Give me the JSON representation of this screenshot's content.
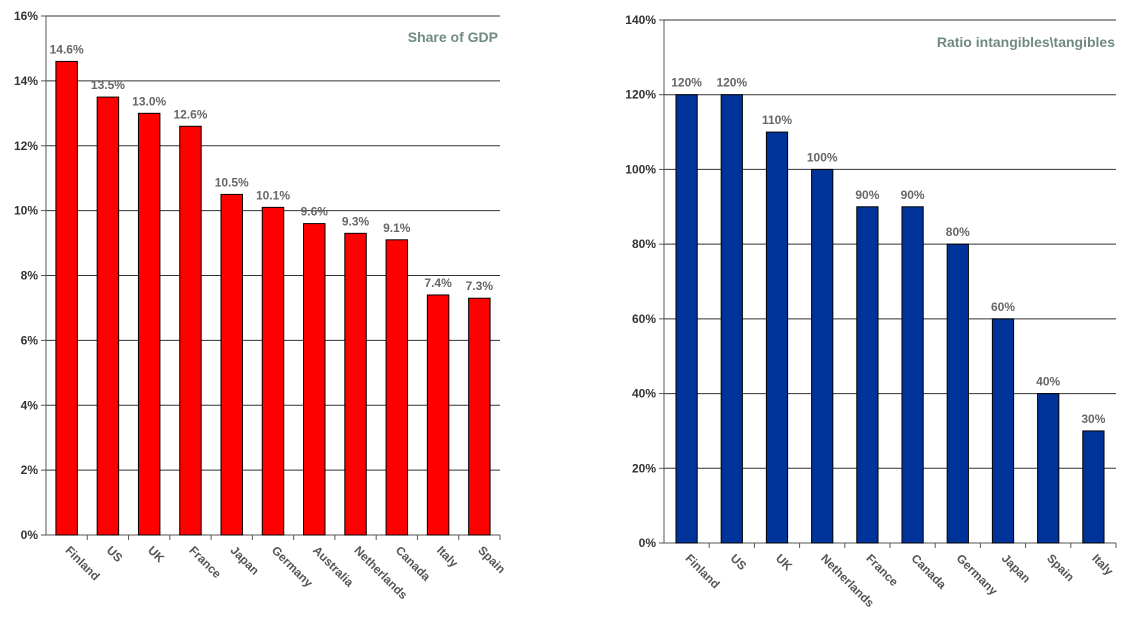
{
  "chart_data": [
    {
      "type": "bar",
      "title": "Share of GDP",
      "categories": [
        "Finland",
        "US",
        "UK",
        "France",
        "Japan",
        "Germany",
        "Australia",
        "Netherlands",
        "Canada",
        "Italy",
        "Spain"
      ],
      "values": [
        14.6,
        13.5,
        13.0,
        12.6,
        10.5,
        10.1,
        9.6,
        9.3,
        9.1,
        7.4,
        7.3
      ],
      "value_labels": [
        "14.6%",
        "13.5%",
        "13.0%",
        "12.6%",
        "10.5%",
        "10.1%",
        "9.6%",
        "9.3%",
        "9.1%",
        "7.4%",
        "7.3%"
      ],
      "ylim": [
        0,
        16
      ],
      "yticks": [
        0,
        2,
        4,
        6,
        8,
        10,
        12,
        14,
        16
      ],
      "ytick_labels": [
        "0%",
        "2%",
        "4%",
        "6%",
        "8%",
        "10%",
        "12%",
        "14%",
        "16%"
      ],
      "grid": true,
      "bar_color": "#ff0000"
    },
    {
      "type": "bar",
      "title": "Ratio intangibles\\tangibles",
      "categories": [
        "Finland",
        "US",
        "UK",
        "Netherlands",
        "France",
        "Canada",
        "Germany",
        "Japan",
        "Spain",
        "Italy"
      ],
      "values": [
        120,
        120,
        110,
        100,
        90,
        90,
        80,
        60,
        40,
        30
      ],
      "value_labels": [
        "120%",
        "120%",
        "110%",
        "100%",
        "90%",
        "90%",
        "80%",
        "60%",
        "40%",
        "30%"
      ],
      "ylim": [
        0,
        140
      ],
      "yticks": [
        0,
        20,
        40,
        60,
        80,
        100,
        120,
        140
      ],
      "ytick_labels": [
        "0%",
        "20%",
        "40%",
        "60%",
        "80%",
        "100%",
        "120%",
        "140%"
      ],
      "grid": true,
      "bar_color": "#003399"
    }
  ]
}
